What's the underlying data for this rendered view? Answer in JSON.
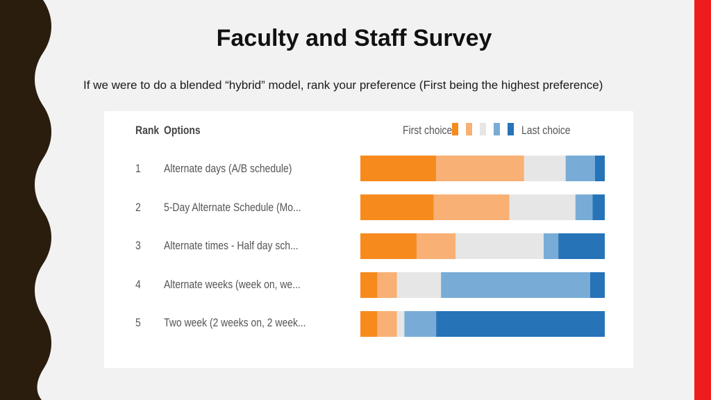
{
  "slide": {
    "title": "Faculty and Staff Survey",
    "subtitle": "If we were to do a blended “hybrid” model, rank your preference (First being the highest preference)"
  },
  "colors": {
    "background": "#f2f2f2",
    "left_wave": "#2b1d0e",
    "right_accent": "#ee1c1c",
    "choice_colors": [
      "#f78a1d",
      "#f8b074",
      "#e6e6e6",
      "#78acd6",
      "#2673b8"
    ]
  },
  "chart_data": {
    "type": "bar",
    "stacked": true,
    "orientation": "horizontal",
    "headers": {
      "rank": "Rank",
      "options": "Options"
    },
    "legend": {
      "first": "First choice",
      "last": "Last choice",
      "placement": "top-right"
    },
    "rows": [
      {
        "rank": "1",
        "option": "Alternate days (A/B schedule)"
      },
      {
        "rank": "2",
        "option": "5-Day Alternate Schedule (Mo..."
      },
      {
        "rank": "3",
        "option": "Alternate times - Half day sch..."
      },
      {
        "rank": "4",
        "option": "Alternate weeks (week on, we..."
      },
      {
        "rank": "5",
        "option": "Two week (2 weeks on, 2 week..."
      }
    ],
    "series": [
      {
        "values": [
          31,
          30,
          23,
          7,
          7
        ]
      },
      {
        "values": [
          36,
          31,
          16,
          8,
          8
        ]
      },
      {
        "values": [
          17,
          27,
          36,
          18,
          3
        ]
      },
      {
        "values": [
          12,
          7,
          6,
          61,
          13
        ]
      },
      {
        "values": [
          4,
          5,
          19,
          6,
          69
        ]
      }
    ],
    "xlim": [
      0,
      100
    ]
  }
}
